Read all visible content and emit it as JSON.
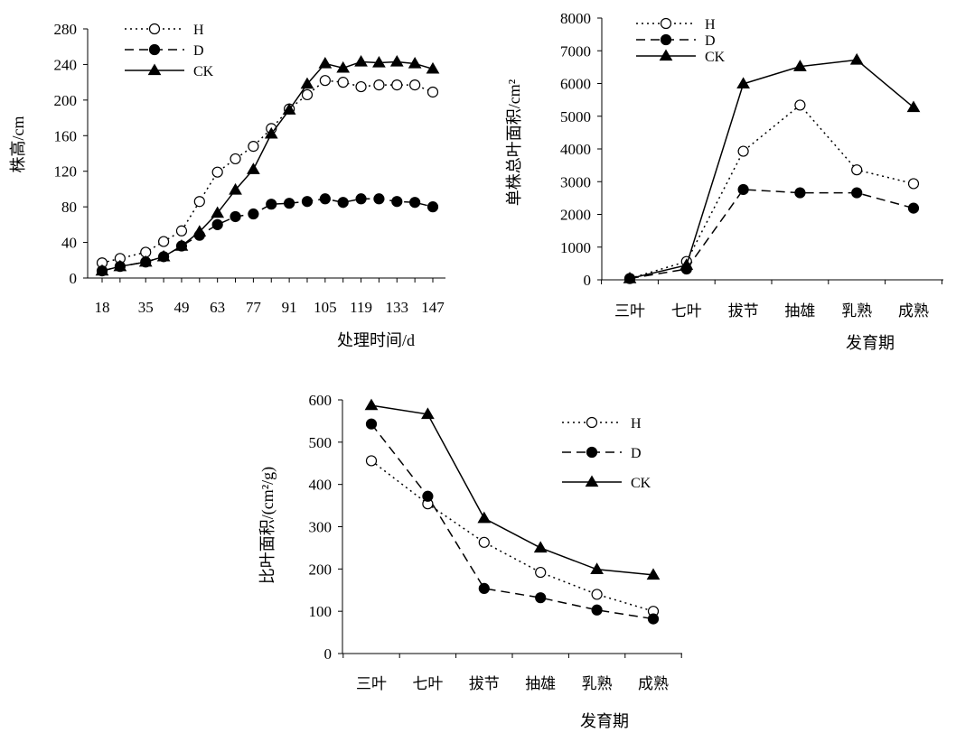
{
  "chart_data": [
    {
      "type": "line",
      "xlabel": "处理时间/d",
      "ylabel": "株高/cm",
      "x_tick_labels": [
        "18",
        "35",
        "49",
        "63",
        "77",
        "91",
        "105",
        "119",
        "133",
        "147"
      ],
      "ylim": [
        0,
        280
      ],
      "y_ticks": [
        0,
        40,
        80,
        120,
        160,
        200,
        240,
        280
      ],
      "legend_position": "top-left",
      "x_numeric": true,
      "xlim": [
        18,
        147
      ],
      "grid": false,
      "series": [
        {
          "name": "H",
          "style": "dotted-open-circle",
          "x": [
            18,
            25,
            35,
            42,
            49,
            56,
            63,
            70,
            77,
            84,
            91,
            98,
            105,
            112,
            119,
            126,
            133,
            140,
            147
          ],
          "values": [
            17,
            22,
            29,
            41,
            53,
            86,
            119,
            134,
            148,
            168,
            190,
            206,
            222,
            220,
            215,
            217,
            217,
            217,
            209
          ]
        },
        {
          "name": "D",
          "style": "dashed-filled-circle",
          "x": [
            18,
            25,
            35,
            42,
            49,
            56,
            63,
            70,
            77,
            84,
            91,
            98,
            105,
            112,
            119,
            126,
            133,
            140,
            147
          ],
          "values": [
            8,
            13,
            18,
            24,
            36,
            48,
            60,
            69,
            72,
            83,
            84,
            86,
            89,
            85,
            89,
            89,
            86,
            85,
            80
          ]
        },
        {
          "name": "CK",
          "style": "solid-filled-triangle",
          "x": [
            18,
            25,
            35,
            42,
            49,
            56,
            63,
            70,
            77,
            84,
            91,
            98,
            105,
            112,
            119,
            126,
            133,
            140,
            147
          ],
          "values": [
            8,
            13,
            18,
            24,
            36,
            52,
            73,
            99,
            122,
            162,
            189,
            218,
            241,
            236,
            243,
            242,
            243,
            241,
            235
          ]
        }
      ]
    },
    {
      "type": "line",
      "xlabel": "发育期",
      "ylabel": "单株总叶面积/cm²",
      "categories": [
        "三叶",
        "七叶",
        "拔节",
        "抽雄",
        "乳熟",
        "成熟"
      ],
      "ylim": [
        0,
        8000
      ],
      "y_ticks": [
        0,
        1000,
        2000,
        3000,
        4000,
        5000,
        6000,
        7000,
        8000
      ],
      "legend_position": "top-left",
      "grid": false,
      "series": [
        {
          "name": "H",
          "style": "dotted-open-circle",
          "values": [
            40,
            560,
            3930,
            5340,
            3360,
            2940
          ]
        },
        {
          "name": "D",
          "style": "dashed-filled-circle",
          "values": [
            40,
            330,
            2760,
            2660,
            2660,
            2190
          ]
        },
        {
          "name": "CK",
          "style": "solid-filled-triangle",
          "values": [
            40,
            450,
            5990,
            6520,
            6720,
            5270
          ]
        }
      ]
    },
    {
      "type": "line",
      "xlabel": "发育期",
      "ylabel": "比叶面积/(cm²/g)",
      "categories": [
        "三叶",
        "七叶",
        "拔节",
        "抽雄",
        "乳熟",
        "成熟"
      ],
      "ylim": [
        0,
        600
      ],
      "y_ticks": [
        0,
        100,
        200,
        300,
        400,
        500,
        600
      ],
      "legend_position": "top-right",
      "grid": false,
      "series": [
        {
          "name": "H",
          "style": "dotted-open-circle",
          "values": [
            456,
            354,
            263,
            192,
            140,
            100
          ]
        },
        {
          "name": "D",
          "style": "dashed-filled-circle",
          "values": [
            543,
            372,
            154,
            132,
            103,
            82
          ]
        },
        {
          "name": "CK",
          "style": "solid-filled-triangle",
          "values": [
            587,
            566,
            320,
            250,
            199,
            186
          ]
        }
      ]
    }
  ]
}
